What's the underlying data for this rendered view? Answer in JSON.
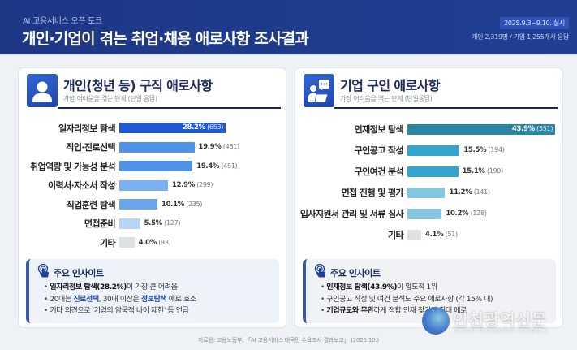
{
  "header": {
    "kicker": "AI 고용서비스 오픈 토크",
    "title": "개인·기업이 겪는 취업·채용 애로사항 조사결과",
    "date_badge": "2025.9.3~9.10. 실시",
    "respondents": "개인 2,319명 / 기업 1,255개사 응답"
  },
  "left_panel": {
    "icon": "person-icon",
    "title": "개인(청년 등) 구직 애로사항",
    "subtitle": "가장 어려움을 겪는 단계 (단일 응답)",
    "bars": [
      {
        "label": "일자리정보 탐색",
        "pct": "28.2%",
        "count": "(653)",
        "value": 28.2,
        "color": "#2158d6",
        "inside": true
      },
      {
        "label": "직업·진로선택",
        "pct": "19.9%",
        "count": "(461)",
        "value": 19.9,
        "color": "#4f92e8",
        "inside": false
      },
      {
        "label": "취업역량 및 가능성 분석",
        "pct": "19.4%",
        "count": "(451)",
        "value": 19.4,
        "color": "#4f92e8",
        "inside": false
      },
      {
        "label": "이력서·자소서 작성",
        "pct": "12.9%",
        "count": "(299)",
        "value": 12.9,
        "color": "#7ab1f0",
        "inside": false
      },
      {
        "label": "직업훈련 탐색",
        "pct": "10.1%",
        "count": "(235)",
        "value": 10.1,
        "color": "#6aa6ee",
        "inside": false
      },
      {
        "label": "면접준비",
        "pct": "5.5%",
        "count": "(127)",
        "value": 5.5,
        "color": "#b5d5f7",
        "inside": false
      },
      {
        "label": "기타",
        "pct": "4.0%",
        "count": "(93)",
        "value": 4.0,
        "color": "#dde1e6",
        "inside": false
      }
    ],
    "insight": {
      "icon": "touch-hand-icon",
      "title": "주요 인사이트",
      "items": [
        {
          "bold": "일자리정보 탐색(28.2%)",
          "text": "이 가장 큰 어려움"
        },
        {
          "pre": "20대는 ",
          "hl1": "진로선택",
          "mid": ", 30대 이상은 ",
          "hl2": "정보탐색",
          "post": " 애로 호소"
        },
        {
          "text": "기타 의견으로 '기업의 암묵적 나이 제한' 등 언급"
        }
      ]
    }
  },
  "right_panel": {
    "icon": "recruiter-chat-icon",
    "title": "기업 구인 애로사항",
    "subtitle": "가장 어려움을 겪는 단계 (단일응답)",
    "bars": [
      {
        "label": "인재정보 탐색",
        "pct": "43.9%",
        "count": "(551)",
        "value": 43.9,
        "color": "#2a86a3",
        "inside": true
      },
      {
        "label": "구인공고 작성",
        "pct": "15.5%",
        "count": "(194)",
        "value": 15.5,
        "color": "#35a4cc",
        "inside": false
      },
      {
        "label": "구인여건 분석",
        "pct": "15.1%",
        "count": "(190)",
        "value": 15.1,
        "color": "#35a4cc",
        "inside": false
      },
      {
        "label": "면접 진행 및 평가",
        "pct": "11.2%",
        "count": "(141)",
        "value": 11.2,
        "color": "#86c7df",
        "inside": false
      },
      {
        "label": "입사지원서 관리 및 서류 심사",
        "pct": "10.2%",
        "count": "(128)",
        "value": 10.2,
        "color": "#86c7df",
        "inside": false
      },
      {
        "label": "기타",
        "pct": "4.1%",
        "count": "(51)",
        "value": 4.1,
        "color": "#dde1e6",
        "inside": false
      }
    ],
    "insight": {
      "icon": "touch-hand-icon",
      "title": "주요 인사이트",
      "items": [
        {
          "bold": "인재정보 탐색(43.9%)",
          "text": "이 압도적 1위"
        },
        {
          "text": "구인공고 작성 및 여건 분석도 주요 애로사항 (각 15% 대)"
        },
        {
          "bold": "기업규모와 무관",
          "text": "하게 적합 인재 찾기가 최대 애로"
        }
      ]
    }
  },
  "source": "자료원: 고용노동부, 「AI 고용서비스 대국민 수요조사 결과보고」 (2025.10.)",
  "watermark": {
    "text": "인천광역신문",
    "sub": "Incheon Metropolitan newspaper"
  },
  "chart_data": [
    {
      "type": "bar",
      "orientation": "horizontal",
      "title": "개인(청년 등) 구직 애로사항",
      "subtitle": "가장 어려움을 겪는 단계 (단일 응답)",
      "categories": [
        "일자리정보 탐색",
        "직업·진로선택",
        "취업역량 및 가능성 분석",
        "이력서·자소서 작성",
        "직업훈련 탐색",
        "면접준비",
        "기타"
      ],
      "values": [
        28.2,
        19.9,
        19.4,
        12.9,
        10.1,
        5.5,
        4.0
      ],
      "counts": [
        653,
        461,
        451,
        299,
        235,
        127,
        93
      ],
      "unit": "%",
      "grid": false,
      "legend": null
    },
    {
      "type": "bar",
      "orientation": "horizontal",
      "title": "기업 구인 애로사항",
      "subtitle": "가장 어려움을 겪는 단계 (단일응답)",
      "categories": [
        "인재정보 탐색",
        "구인공고 작성",
        "구인여건 분석",
        "면접 진행 및 평가",
        "입사지원서 관리 및 서류 심사",
        "기타"
      ],
      "values": [
        43.9,
        15.5,
        15.1,
        11.2,
        10.2,
        4.1
      ],
      "counts": [
        551,
        194,
        190,
        141,
        128,
        51
      ],
      "unit": "%",
      "grid": false,
      "legend": null
    }
  ]
}
